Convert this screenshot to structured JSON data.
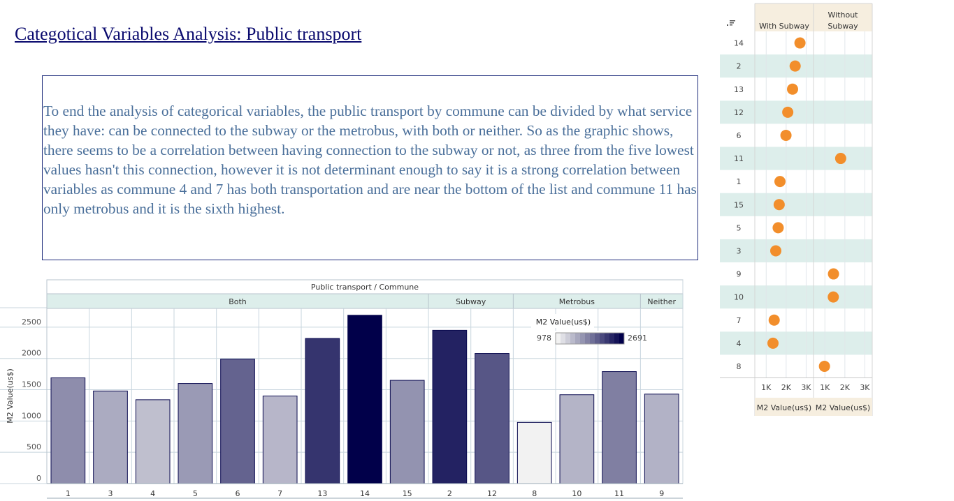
{
  "page": {
    "title": "Categotical Variables Analysis: Public transport",
    "description": " To end the analysis of categorical variables, the public transport by commune can be divided by what service they have: can be connected to the subway or the metrobus, with both or neither. So as the graphic shows, there seems to be a correlation between having connection to the subway or not, as three from the five lowest values hasn't this connection, however it is not determinant enough to say it is a strong correlation between variables as commune 4 and 7 has both transportation and are near the bottom of the list and commune 11 has only metrobus and it is the sixth highest."
  },
  "chart_data": [
    {
      "type": "bar",
      "title": "Public transport / Commune",
      "ylabel": "M2 Value(us$)",
      "ylim": [
        0,
        2800
      ],
      "yticks": [
        0,
        500,
        1000,
        1500,
        2000,
        2500
      ],
      "grid": true,
      "groups": [
        {
          "name": "Both",
          "categories": [
            "1",
            "3",
            "4",
            "5",
            "6",
            "7",
            "13",
            "14",
            "15"
          ],
          "values": [
            1690,
            1480,
            1340,
            1600,
            1990,
            1400,
            2320,
            2691,
            1650
          ]
        },
        {
          "name": "Subway",
          "categories": [
            "2",
            "12"
          ],
          "values": [
            2450,
            2080
          ]
        },
        {
          "name": "Metrobus",
          "categories": [
            "8",
            "10",
            "11"
          ],
          "values": [
            978,
            1420,
            1790
          ]
        },
        {
          "name": "Neither",
          "categories": [
            "9"
          ],
          "values": [
            1430
          ]
        }
      ],
      "color_legend": {
        "title": "M2 Value(us$)",
        "min": 978,
        "max": 2691,
        "min_color": "#f2f2f2",
        "max_color": "#01004a"
      }
    },
    {
      "type": "scatter",
      "sort_icon": "sort-descending-icon",
      "panels": [
        "With Subway",
        "Without Subway"
      ],
      "rows": [
        "14",
        "2",
        "13",
        "12",
        "6",
        "11",
        "1",
        "15",
        "5",
        "3",
        "9",
        "10",
        "7",
        "4",
        "8"
      ],
      "points": [
        {
          "commune": "14",
          "panel": "With Subway",
          "value": 2691
        },
        {
          "commune": "2",
          "panel": "With Subway",
          "value": 2450
        },
        {
          "commune": "13",
          "panel": "With Subway",
          "value": 2320
        },
        {
          "commune": "12",
          "panel": "With Subway",
          "value": 2080
        },
        {
          "commune": "6",
          "panel": "With Subway",
          "value": 1990
        },
        {
          "commune": "11",
          "panel": "Without Subway",
          "value": 1790
        },
        {
          "commune": "1",
          "panel": "With Subway",
          "value": 1690
        },
        {
          "commune": "15",
          "panel": "With Subway",
          "value": 1650
        },
        {
          "commune": "5",
          "panel": "With Subway",
          "value": 1600
        },
        {
          "commune": "3",
          "panel": "With Subway",
          "value": 1480
        },
        {
          "commune": "9",
          "panel": "Without Subway",
          "value": 1430
        },
        {
          "commune": "10",
          "panel": "Without Subway",
          "value": 1420
        },
        {
          "commune": "7",
          "panel": "With Subway",
          "value": 1400
        },
        {
          "commune": "4",
          "panel": "With Subway",
          "value": 1340
        },
        {
          "commune": "8",
          "panel": "Without Subway",
          "value": 978
        }
      ],
      "xticks": [
        {
          "value": 1000,
          "label": "1K"
        },
        {
          "value": 2000,
          "label": "2K"
        },
        {
          "value": 3000,
          "label": "3K"
        }
      ],
      "xlim": [
        500,
        3300
      ],
      "xlabel": "M2 Value(us$)",
      "marker_color": "#f28e2b",
      "band_color": "#ddeeeb",
      "header_color": "#f6eedf"
    }
  ]
}
